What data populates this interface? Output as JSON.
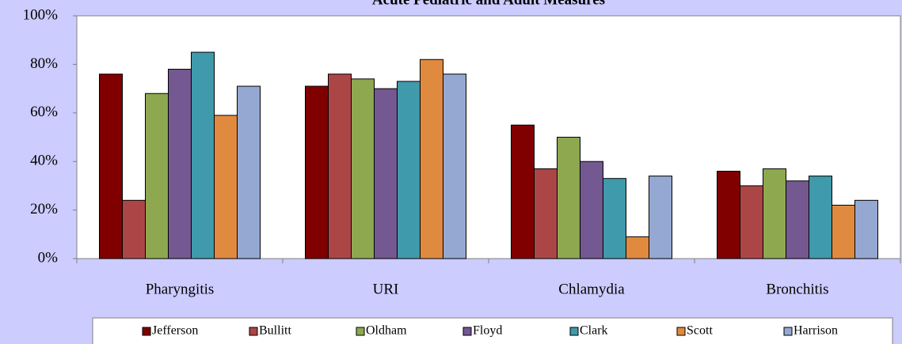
{
  "chart_data": {
    "type": "bar",
    "title": "Acute Pediatric and Adult Measures",
    "categories": [
      "Pharyngitis",
      "URI",
      "Chlamydia",
      "Bronchitis"
    ],
    "series": [
      {
        "name": "Jefferson",
        "color": "#800000",
        "values": [
          76,
          71,
          55,
          36
        ]
      },
      {
        "name": "Bullitt",
        "color": "#ac4646",
        "values": [
          24,
          76,
          37,
          30
        ]
      },
      {
        "name": "Oldham",
        "color": "#8da84f",
        "values": [
          68,
          74,
          50,
          37
        ]
      },
      {
        "name": "Floyd",
        "color": "#735891",
        "values": [
          78,
          70,
          40,
          32
        ]
      },
      {
        "name": "Clark",
        "color": "#3f9aab",
        "values": [
          85,
          73,
          33,
          34
        ]
      },
      {
        "name": "Scott",
        "color": "#e08a40",
        "values": [
          59,
          82,
          9,
          22
        ]
      },
      {
        "name": "Harrison",
        "color": "#94a8d2",
        "values": [
          71,
          76,
          34,
          24
        ]
      }
    ],
    "ylim": [
      0,
      100
    ],
    "yticks": [
      {
        "value": 0,
        "label": "0%"
      },
      {
        "value": 20,
        "label": "20%"
      },
      {
        "value": 40,
        "label": "40%"
      },
      {
        "value": 60,
        "label": "60%"
      },
      {
        "value": 80,
        "label": "80%"
      },
      {
        "value": 100,
        "label": "100%"
      }
    ],
    "grid": false,
    "legend": "bottom"
  }
}
